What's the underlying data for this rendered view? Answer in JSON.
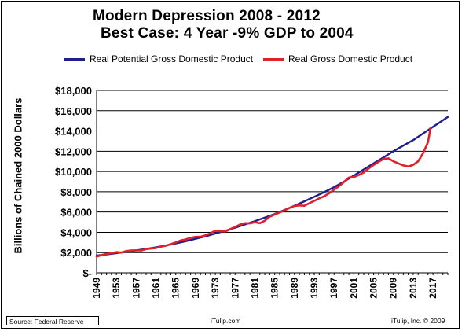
{
  "chart_data": {
    "type": "line",
    "title": "Modern Depression 2008 - 2012",
    "subtitle": "Best Case: 4 Year -9% GDP to 2004",
    "xlabel": "",
    "ylabel": "Billions of Chained 2000 Dollars",
    "ylim": [
      0,
      18000
    ],
    "xlim": [
      1949,
      2020
    ],
    "grid": true,
    "legend_position": "top",
    "y_ticks": [
      0,
      2000,
      4000,
      6000,
      8000,
      10000,
      12000,
      14000,
      16000,
      18000
    ],
    "y_tick_labels": [
      "$-",
      "$2,000",
      "$4,000",
      "$6,000",
      "$8,000",
      "$10,000",
      "$12,000",
      "$14,000",
      "$16,000",
      "$18,000"
    ],
    "x_tick_labels": [
      "1949",
      "1953",
      "1957",
      "1961",
      "1965",
      "1969",
      "1973",
      "1977",
      "1981",
      "1985",
      "1989",
      "1993",
      "1997",
      "2001",
      "2005",
      "2009",
      "2013",
      "2017"
    ],
    "series": [
      {
        "name": "Real Potential Gross Domestic Product",
        "color": "#1f1f8c",
        "x": [
          1949,
          1951,
          1953,
          1955,
          1957,
          1959,
          1961,
          1963,
          1965,
          1967,
          1969,
          1971,
          1973,
          1975,
          1977,
          1979,
          1981,
          1983,
          1985,
          1987,
          1989,
          1991,
          1993,
          1995,
          1997,
          1999,
          2001,
          2003,
          2005,
          2007,
          2009,
          2011,
          2013,
          2015,
          2017,
          2019,
          2020
        ],
        "values": [
          1700,
          1820,
          1950,
          2080,
          2220,
          2370,
          2520,
          2700,
          2900,
          3120,
          3360,
          3600,
          3880,
          4150,
          4450,
          4780,
          5100,
          5450,
          5800,
          6200,
          6620,
          7050,
          7500,
          7950,
          8450,
          9000,
          9600,
          10200,
          10800,
          11400,
          12000,
          12550,
          13100,
          13750,
          14400,
          15050,
          15380
        ]
      },
      {
        "name": "Real Gross Domestic Product",
        "color": "#e0202a",
        "x": [
          1949,
          1950,
          1951,
          1952,
          1953,
          1954,
          1955,
          1956,
          1957,
          1958,
          1959,
          1960,
          1961,
          1962,
          1963,
          1964,
          1965,
          1966,
          1967,
          1968,
          1969,
          1970,
          1971,
          1972,
          1973,
          1974,
          1975,
          1976,
          1977,
          1978,
          1979,
          1980,
          1981,
          1982,
          1983,
          1984,
          1985,
          1986,
          1987,
          1988,
          1989,
          1990,
          1991,
          1992,
          1993,
          1994,
          1995,
          1996,
          1997,
          1998,
          1999,
          2000,
          2001,
          2002,
          2003,
          2004,
          2005,
          2006,
          2007,
          2008,
          2009,
          2010,
          2011,
          2012,
          2013,
          2014,
          2015,
          2016,
          2016.5
        ],
        "values": [
          1600,
          1750,
          1880,
          1950,
          2050,
          2000,
          2150,
          2200,
          2230,
          2200,
          2350,
          2400,
          2450,
          2580,
          2680,
          2830,
          3000,
          3200,
          3300,
          3450,
          3550,
          3560,
          3700,
          3900,
          4150,
          4120,
          4080,
          4320,
          4520,
          4760,
          4900,
          4880,
          5000,
          4900,
          5150,
          5550,
          5750,
          5950,
          6150,
          6400,
          6600,
          6650,
          6620,
          6870,
          7100,
          7350,
          7550,
          7850,
          8200,
          8550,
          8950,
          9400,
          9450,
          9650,
          9900,
          10300,
          10650,
          10950,
          11250,
          11300,
          11000,
          10800,
          10600,
          10500,
          10650,
          11000,
          11800,
          12900,
          14300
        ]
      }
    ]
  },
  "footer": {
    "source": "Source: Federal Reserve",
    "site": "iTulip.com",
    "copyright": "iTulip, Inc. © 2009"
  }
}
